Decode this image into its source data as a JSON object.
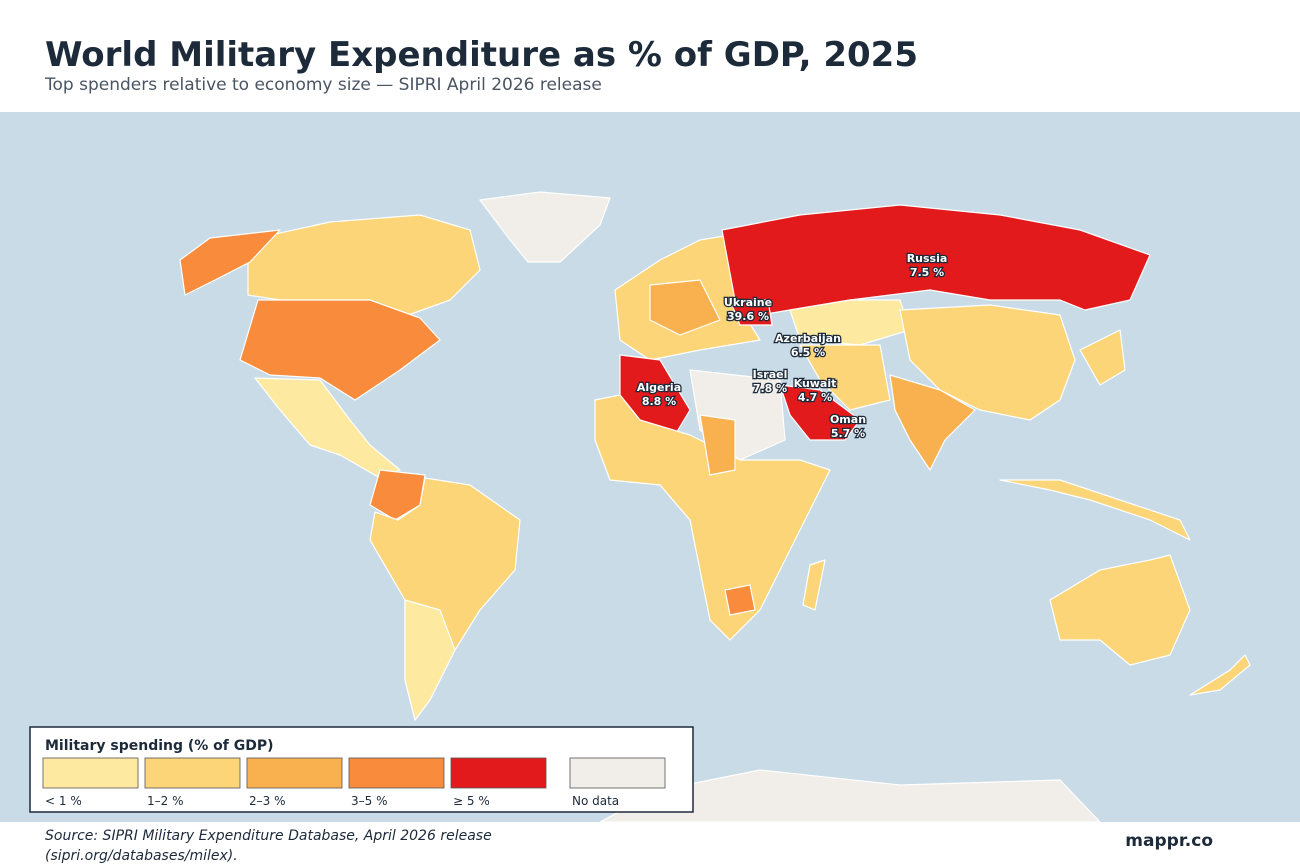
{
  "header": {
    "title": "World Military Expenditure as % of GDP, 2025",
    "subtitle": "Top spenders relative to economy size — SIPRI April 2026 release"
  },
  "annotations": [
    {
      "name": "Russia",
      "label": "7.5 %"
    },
    {
      "name": "Ukraine",
      "label": "39.6 %"
    },
    {
      "name": "Azerbaijan",
      "label": "6.5 %"
    },
    {
      "name": "Israel",
      "label": "7.8 %"
    },
    {
      "name": "Kuwait",
      "label": "4.7 %"
    },
    {
      "name": "Algeria",
      "label": "8.8 %"
    },
    {
      "name": "Oman",
      "label": "5.7 %"
    }
  ],
  "legend": {
    "title": "Military spending (% of GDP)",
    "bins": [
      {
        "label": "< 1 %",
        "color": "#fde9a0"
      },
      {
        "label": "1–2 %",
        "color": "#fbd577"
      },
      {
        "label": "2–3 %",
        "color": "#f9b150"
      },
      {
        "label": "3–5 %",
        "color": "#f88c3c"
      },
      {
        "label": "≥ 5 %",
        "color": "#e31a1c"
      },
      {
        "label": "No data",
        "color": "#f1ede8"
      }
    ]
  },
  "footer": {
    "source": [
      "Source: SIPRI Military Expenditure Database, April 2026 release",
      "(sipri.org/databases/milex)."
    ],
    "brand": "mappr.co"
  }
}
